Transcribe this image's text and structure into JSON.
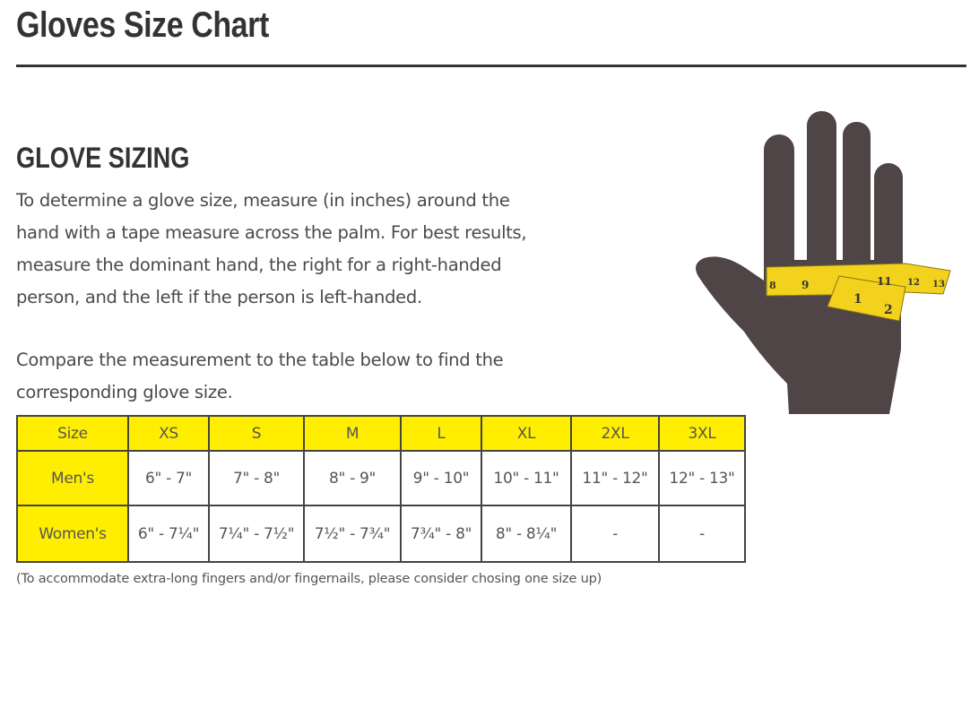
{
  "page_title": "Gloves Size Chart",
  "section_heading": "GLOVE SIZING",
  "paragraph1_lines": [
    "To determine a glove size, measure (in inches) around the",
    "hand with a tape measure across the palm. For best results,",
    "measure the dominant hand, the right for a right-handed",
    "person, and the left if the person is left-handed."
  ],
  "paragraph2_lines": [
    "Compare the measurement to the table below to find the",
    "corresponding glove size."
  ],
  "table": {
    "header": [
      "Size",
      "XS",
      "S",
      "M",
      "L",
      "XL",
      "2XL",
      "3XL"
    ],
    "rows": [
      [
        "Men's",
        "6\" - 7\"",
        "7\" - 8\"",
        "8\" - 9\"",
        "9\" - 10\"",
        "10\" - 11\"",
        "11\" - 12\"",
        "12\" - 13\""
      ],
      [
        "Women's",
        "6\" - 7¼\"",
        "7¼\" - 7½\"",
        "7½\" - 7¾\"",
        "7¾\" - 8\"",
        "8\" - 8¼\"",
        "-",
        "-"
      ]
    ]
  },
  "footnote": "(To accommodate extra-long fingers and/or fingernails, please consider chosing one size up)",
  "illustration": {
    "name": "hand-with-tape-measure",
    "tape_numbers": [
      "8",
      "9",
      "11",
      "12",
      "13",
      "1",
      "2"
    ]
  },
  "colors": {
    "header_yellow": "#ffee00",
    "hand": "#4f4546",
    "tape": "#f2d21c",
    "text": "#444444"
  }
}
